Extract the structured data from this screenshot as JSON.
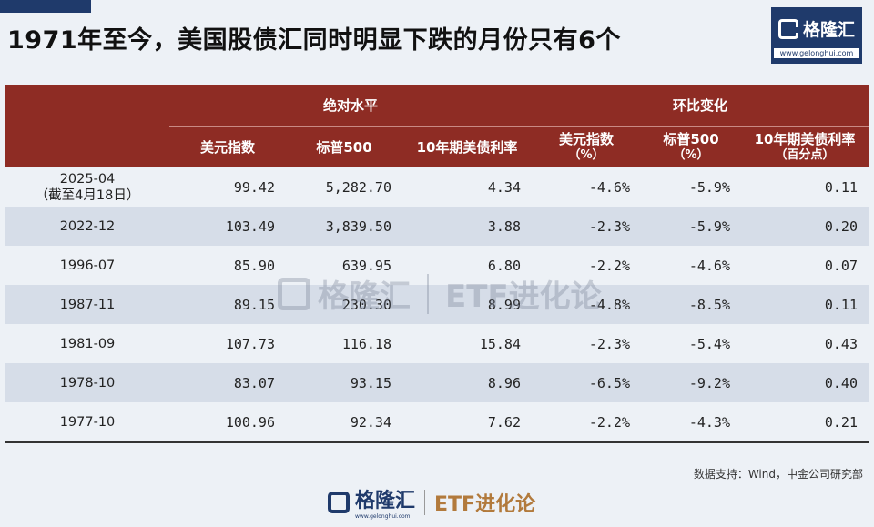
{
  "title": "1971年至今，美国股债汇同时明显下跌的月份只有6个",
  "logo": {
    "name": "格隆汇",
    "url": "www.gelonghui.com"
  },
  "table": {
    "group_headers": [
      "绝对水平",
      "环比变化"
    ],
    "columns": [
      {
        "label": "",
        "sub": ""
      },
      {
        "label": "美元指数",
        "sub": ""
      },
      {
        "label": "标普500",
        "sub": ""
      },
      {
        "label": "10年期美债利率",
        "sub": ""
      },
      {
        "label": "美元指数",
        "sub": "（%）"
      },
      {
        "label": "标普500",
        "sub": "（%）"
      },
      {
        "label": "10年期美债利率",
        "sub": "（百分点）"
      }
    ],
    "rows": [
      {
        "date": "2025-04",
        "note": "（截至4月18日）",
        "dxy": "99.42",
        "spx": "5,282.70",
        "ust": "4.34",
        "dxy_chg": "-4.6%",
        "spx_chg": "-5.9%",
        "ust_chg": "0.11"
      },
      {
        "date": "2022-12",
        "note": "",
        "dxy": "103.49",
        "spx": "3,839.50",
        "ust": "3.88",
        "dxy_chg": "-2.3%",
        "spx_chg": "-5.9%",
        "ust_chg": "0.20"
      },
      {
        "date": "1996-07",
        "note": "",
        "dxy": "85.90",
        "spx": "639.95",
        "ust": "6.80",
        "dxy_chg": "-2.2%",
        "spx_chg": "-4.6%",
        "ust_chg": "0.07"
      },
      {
        "date": "1987-11",
        "note": "",
        "dxy": "89.15",
        "spx": "230.30",
        "ust": "8.99",
        "dxy_chg": "-4.8%",
        "spx_chg": "-8.5%",
        "ust_chg": "0.11"
      },
      {
        "date": "1981-09",
        "note": "",
        "dxy": "107.73",
        "spx": "116.18",
        "ust": "15.84",
        "dxy_chg": "-2.3%",
        "spx_chg": "-5.4%",
        "ust_chg": "0.43"
      },
      {
        "date": "1978-10",
        "note": "",
        "dxy": "83.07",
        "spx": "93.15",
        "ust": "8.96",
        "dxy_chg": "-6.5%",
        "spx_chg": "-9.2%",
        "ust_chg": "0.40"
      },
      {
        "date": "1977-10",
        "note": "",
        "dxy": "100.96",
        "spx": "92.34",
        "ust": "7.62",
        "dxy_chg": "-2.2%",
        "spx_chg": "-4.3%",
        "ust_chg": "0.21"
      }
    ]
  },
  "watermark": {
    "brand": "格隆汇",
    "url": "www.gelonghui.com",
    "tag": "ETF进化论"
  },
  "source": "数据支持：Wind，中金公司研究部",
  "footer": {
    "brand": "格隆汇",
    "url": "www.gelonghui.com",
    "tag": "ETF进化论"
  },
  "colors": {
    "header_bg": "#8e2c24",
    "stripe": "#d6dde8",
    "brand_blue": "#1f3a6b",
    "etf_gold": "#b27a3c",
    "page_bg": "#edf1f6"
  }
}
